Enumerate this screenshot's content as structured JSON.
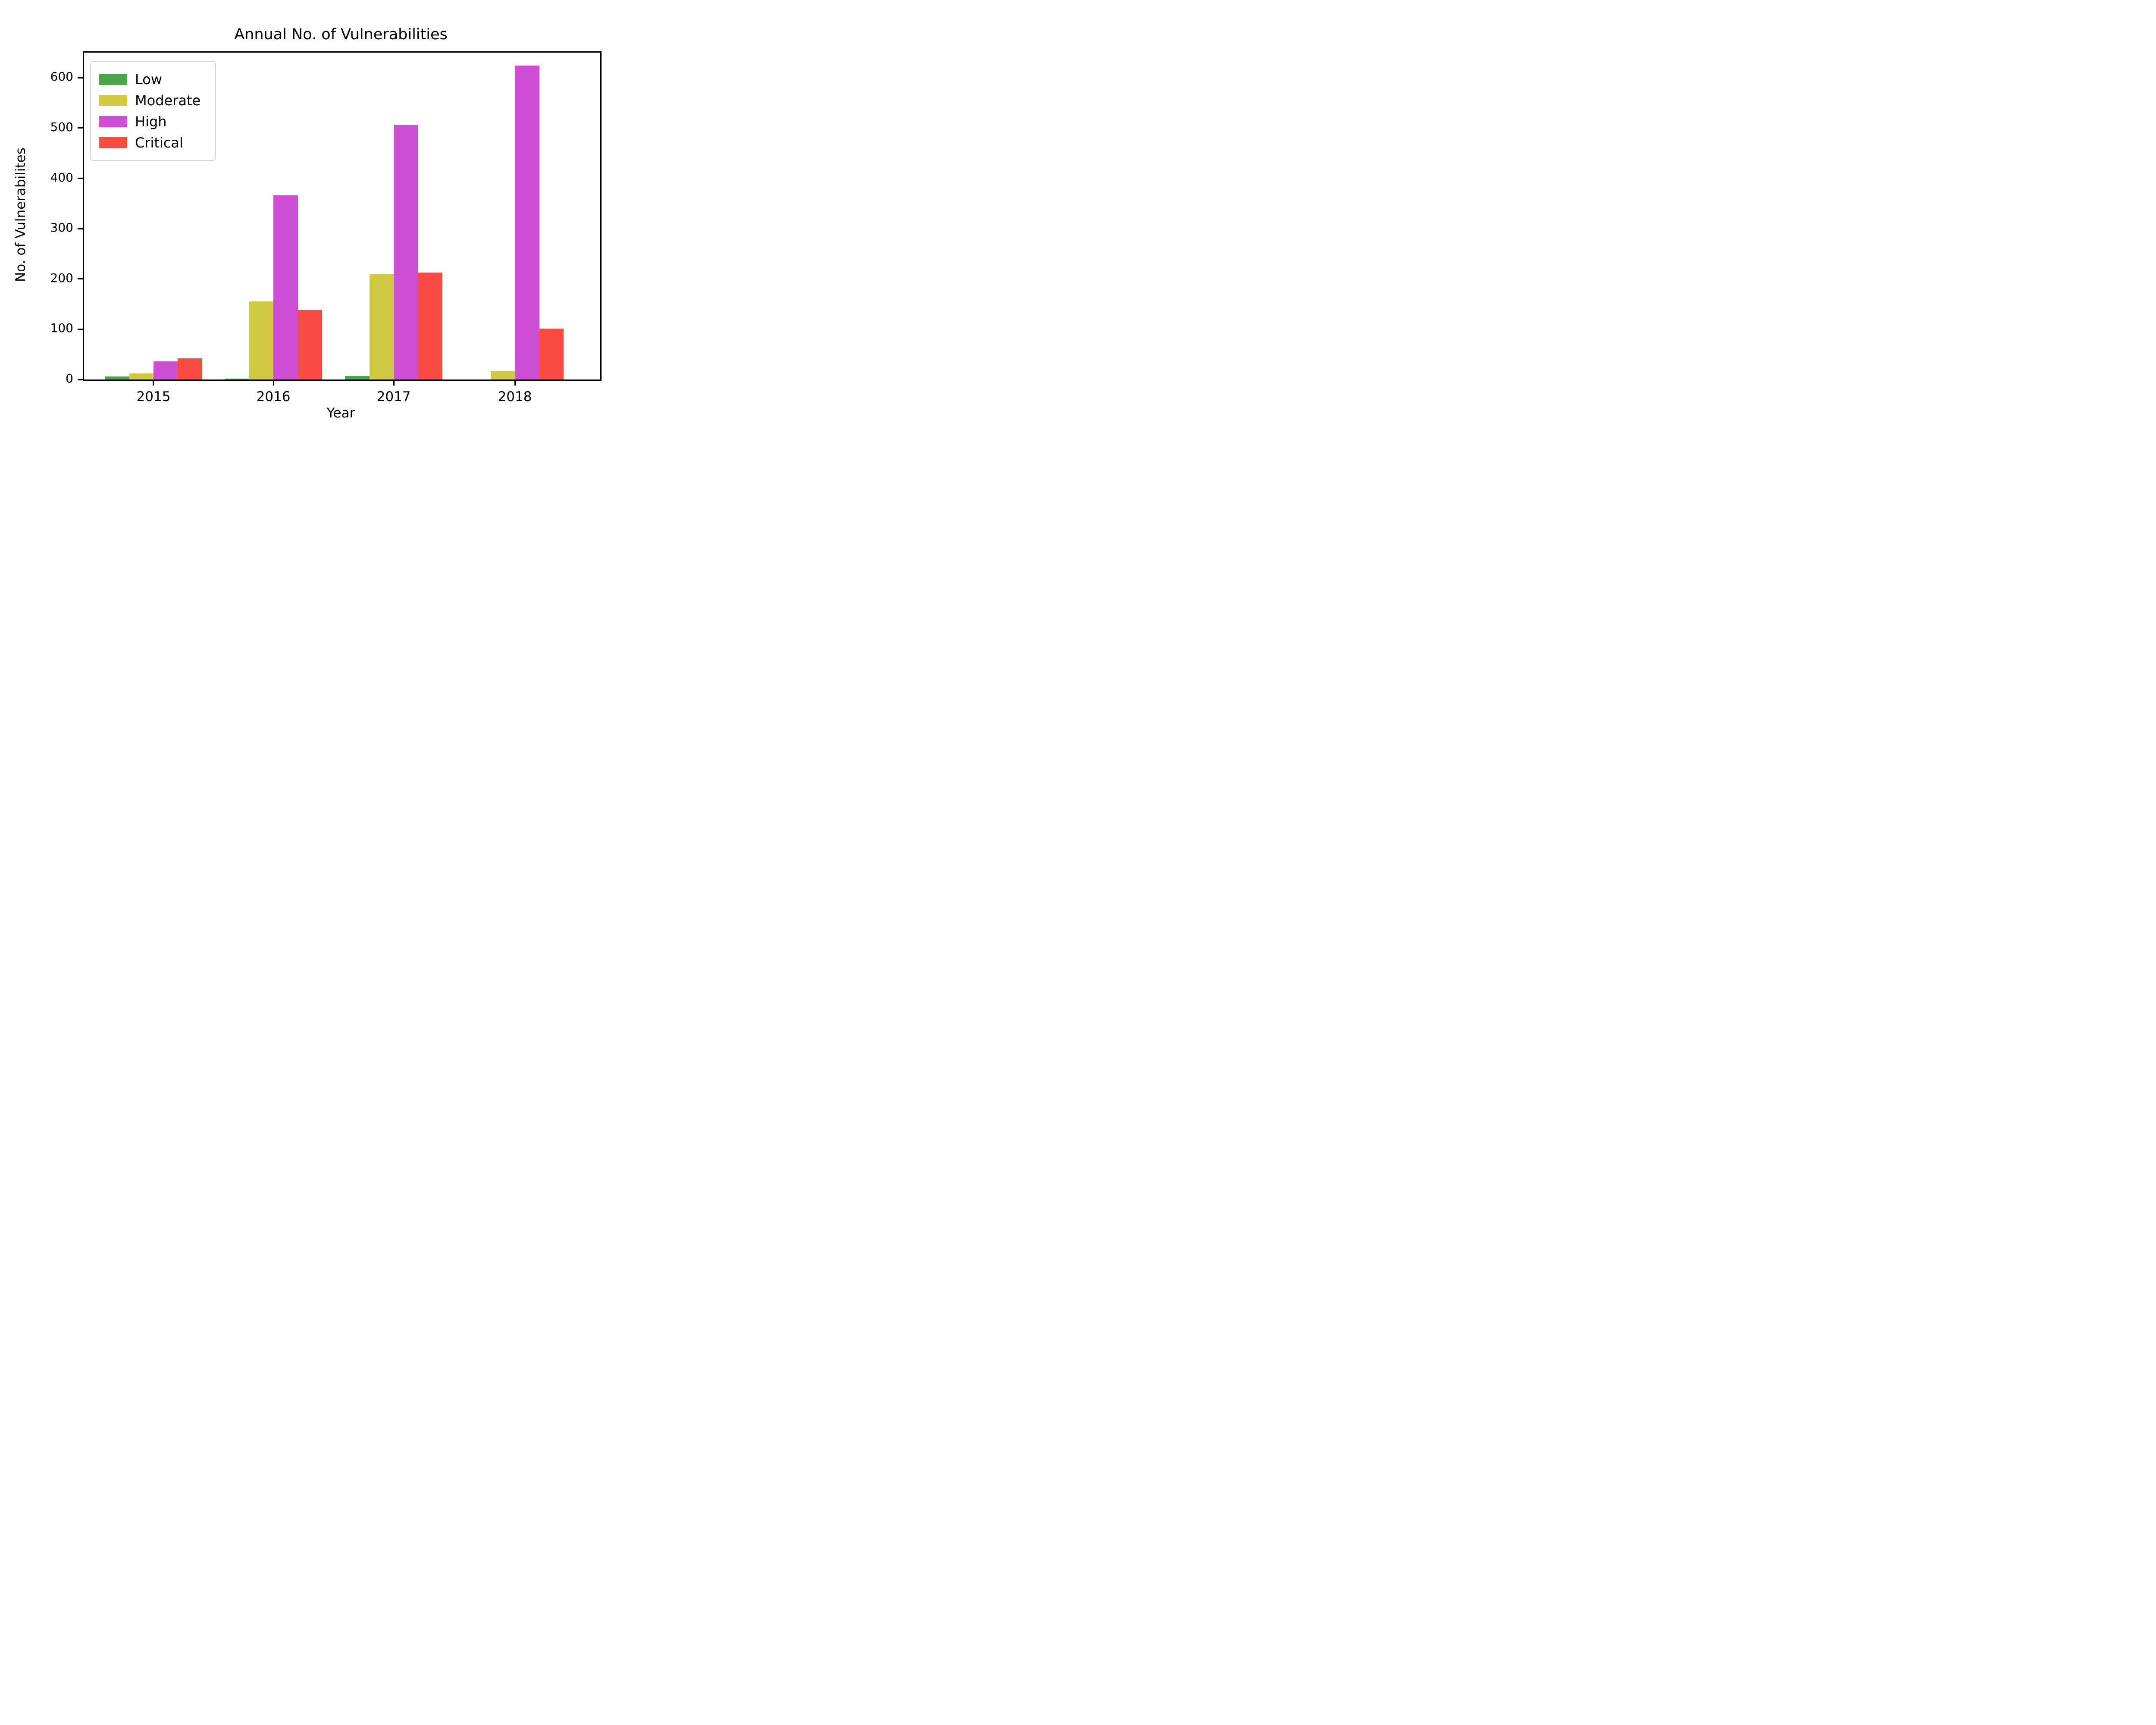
{
  "title": "Annual No. of Vulnerabilities",
  "axes": {
    "x_label": "Year",
    "y_label": "No. of Vulnerabilites",
    "y_ticks": [
      0,
      100,
      200,
      300,
      400,
      500,
      600
    ],
    "x_tick_labels": [
      "2015",
      "2016",
      "2017",
      "2018"
    ]
  },
  "legend": {
    "position": "upper left",
    "entries": [
      "Low",
      "Moderate",
      "High",
      "Critical"
    ]
  },
  "colors": {
    "low": "#4aa54d",
    "moderate": "#cfca41",
    "high": "#ce4fd4",
    "critical": "#f94b42",
    "axis": "#000000",
    "legend_border": "#d5d5d5",
    "background": "#ffffff"
  },
  "chart_data": {
    "type": "bar",
    "title": "Annual No. of Vulnerabilities",
    "categories": [
      "2015",
      "2016",
      "2017",
      "2018"
    ],
    "series": [
      {
        "name": "Low",
        "color": "#4aa54d",
        "values": [
          6,
          2,
          7,
          0
        ]
      },
      {
        "name": "Moderate",
        "color": "#cfca41",
        "values": [
          12,
          155,
          210,
          17
        ]
      },
      {
        "name": "High",
        "color": "#ce4fd4",
        "values": [
          36,
          366,
          506,
          624
        ]
      },
      {
        "name": "Critical",
        "color": "#f94b42",
        "values": [
          42,
          138,
          213,
          101
        ]
      }
    ],
    "xlabel": "Year",
    "ylabel": "No. of Vulnerabilites",
    "ylim": [
      0,
      650
    ],
    "y_tick_step": 100,
    "grid": false,
    "legend_position": "upper left"
  }
}
